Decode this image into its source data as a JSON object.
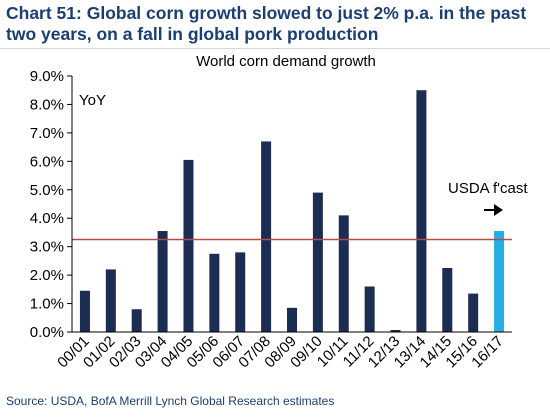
{
  "title": "Chart 51: Global corn growth slowed to just 2% p.a. in the past two years, on a fall in global pork production",
  "source": "Source: USDA, BofA Merrill Lynch Global Research estimates",
  "chart_data": {
    "type": "bar",
    "title": "World corn demand growth",
    "unit_label": "YoY",
    "categories": [
      "00/01",
      "01/02",
      "02/03",
      "03/04",
      "04/05",
      "05/06",
      "06/07",
      "07/08",
      "08/09",
      "09/10",
      "10/11",
      "11/12",
      "12/13",
      "13/14",
      "14/15",
      "15/16",
      "16/17"
    ],
    "series": [
      {
        "values": [
          1.45,
          2.2,
          0.8,
          3.55,
          6.05,
          2.75,
          2.8,
          6.7,
          0.85,
          4.9,
          4.1,
          1.6,
          0.07,
          8.5,
          2.25,
          1.35,
          3.55
        ]
      }
    ],
    "yticks": [
      "0.0%",
      "1.0%",
      "2.0%",
      "3.0%",
      "4.0%",
      "5.0%",
      "6.0%",
      "7.0%",
      "8.0%",
      "9.0%"
    ],
    "ylim": [
      0,
      9
    ],
    "reference_line": 3.25,
    "annotation": "USDA f'cast",
    "forecast_category": "16/17",
    "colors": {
      "bar": "#1b2d52",
      "forecast_bar": "#26aee4",
      "reference_line": "#b84a4a",
      "axis": "#000000",
      "title": "#1a3f73"
    },
    "grid": false
  }
}
